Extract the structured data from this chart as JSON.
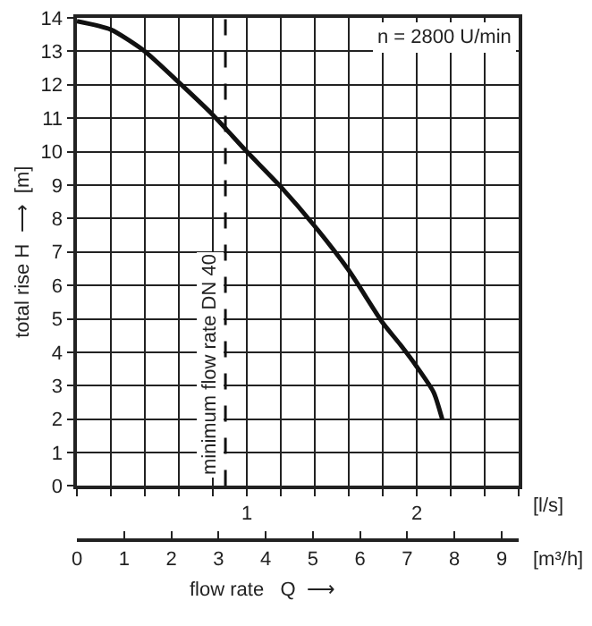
{
  "chart_data": {
    "type": "line",
    "xlabel": "flow rate   Q  ⟶",
    "ylabel": "total rise H  ⟶  [m]",
    "x": [
      0,
      0.2,
      0.4,
      0.6,
      0.8,
      1.0,
      1.2,
      1.4,
      1.6,
      1.8,
      1.9,
      2.0,
      2.1,
      2.15
    ],
    "series": [
      {
        "color": "#111111",
        "values": [
          13.9,
          13.65,
          13.0,
          12.07,
          11.1,
          10.0,
          8.95,
          7.77,
          6.45,
          4.88,
          4.25,
          3.57,
          2.8,
          2.0
        ]
      }
    ],
    "xlim": [
      0,
      2.6
    ],
    "xticks": [
      {
        "value": 0,
        "label": null
      },
      {
        "value": 0.2,
        "label": null
      },
      {
        "value": 0.4,
        "label": null
      },
      {
        "value": 0.6,
        "label": null
      },
      {
        "value": 0.8,
        "label": null
      },
      1,
      {
        "value": 1.2,
        "label": null
      },
      {
        "value": 1.4,
        "label": null
      },
      {
        "value": 1.6,
        "label": null
      },
      {
        "value": 1.8,
        "label": null
      },
      2,
      {
        "value": 2.2,
        "label": null
      },
      {
        "value": 2.4,
        "label": null
      },
      {
        "value": 2.6,
        "label": null
      }
    ],
    "ylim": [
      0,
      14
    ],
    "yticks": [
      0,
      1,
      2,
      3,
      4,
      5,
      6,
      7,
      8,
      9,
      10,
      11,
      12,
      13,
      14
    ],
    "x2lim": [
      0,
      9.36
    ],
    "x2ticks": [
      0,
      1,
      2,
      3,
      4,
      5,
      6,
      7,
      8,
      9
    ],
    "x2label": "[m³/h]",
    "annotations": [
      "n = 2800 U/min",
      "[l/s]"
    ],
    "ref_lines": [
      {
        "axis": "x",
        "value": 0.874,
        "label": "minimum flow rate DN 40",
        "line_style": "dashed",
        "color": "#111111"
      }
    ],
    "grid": true,
    "legend": false,
    "marker": "none",
    "line_style": "solid"
  }
}
